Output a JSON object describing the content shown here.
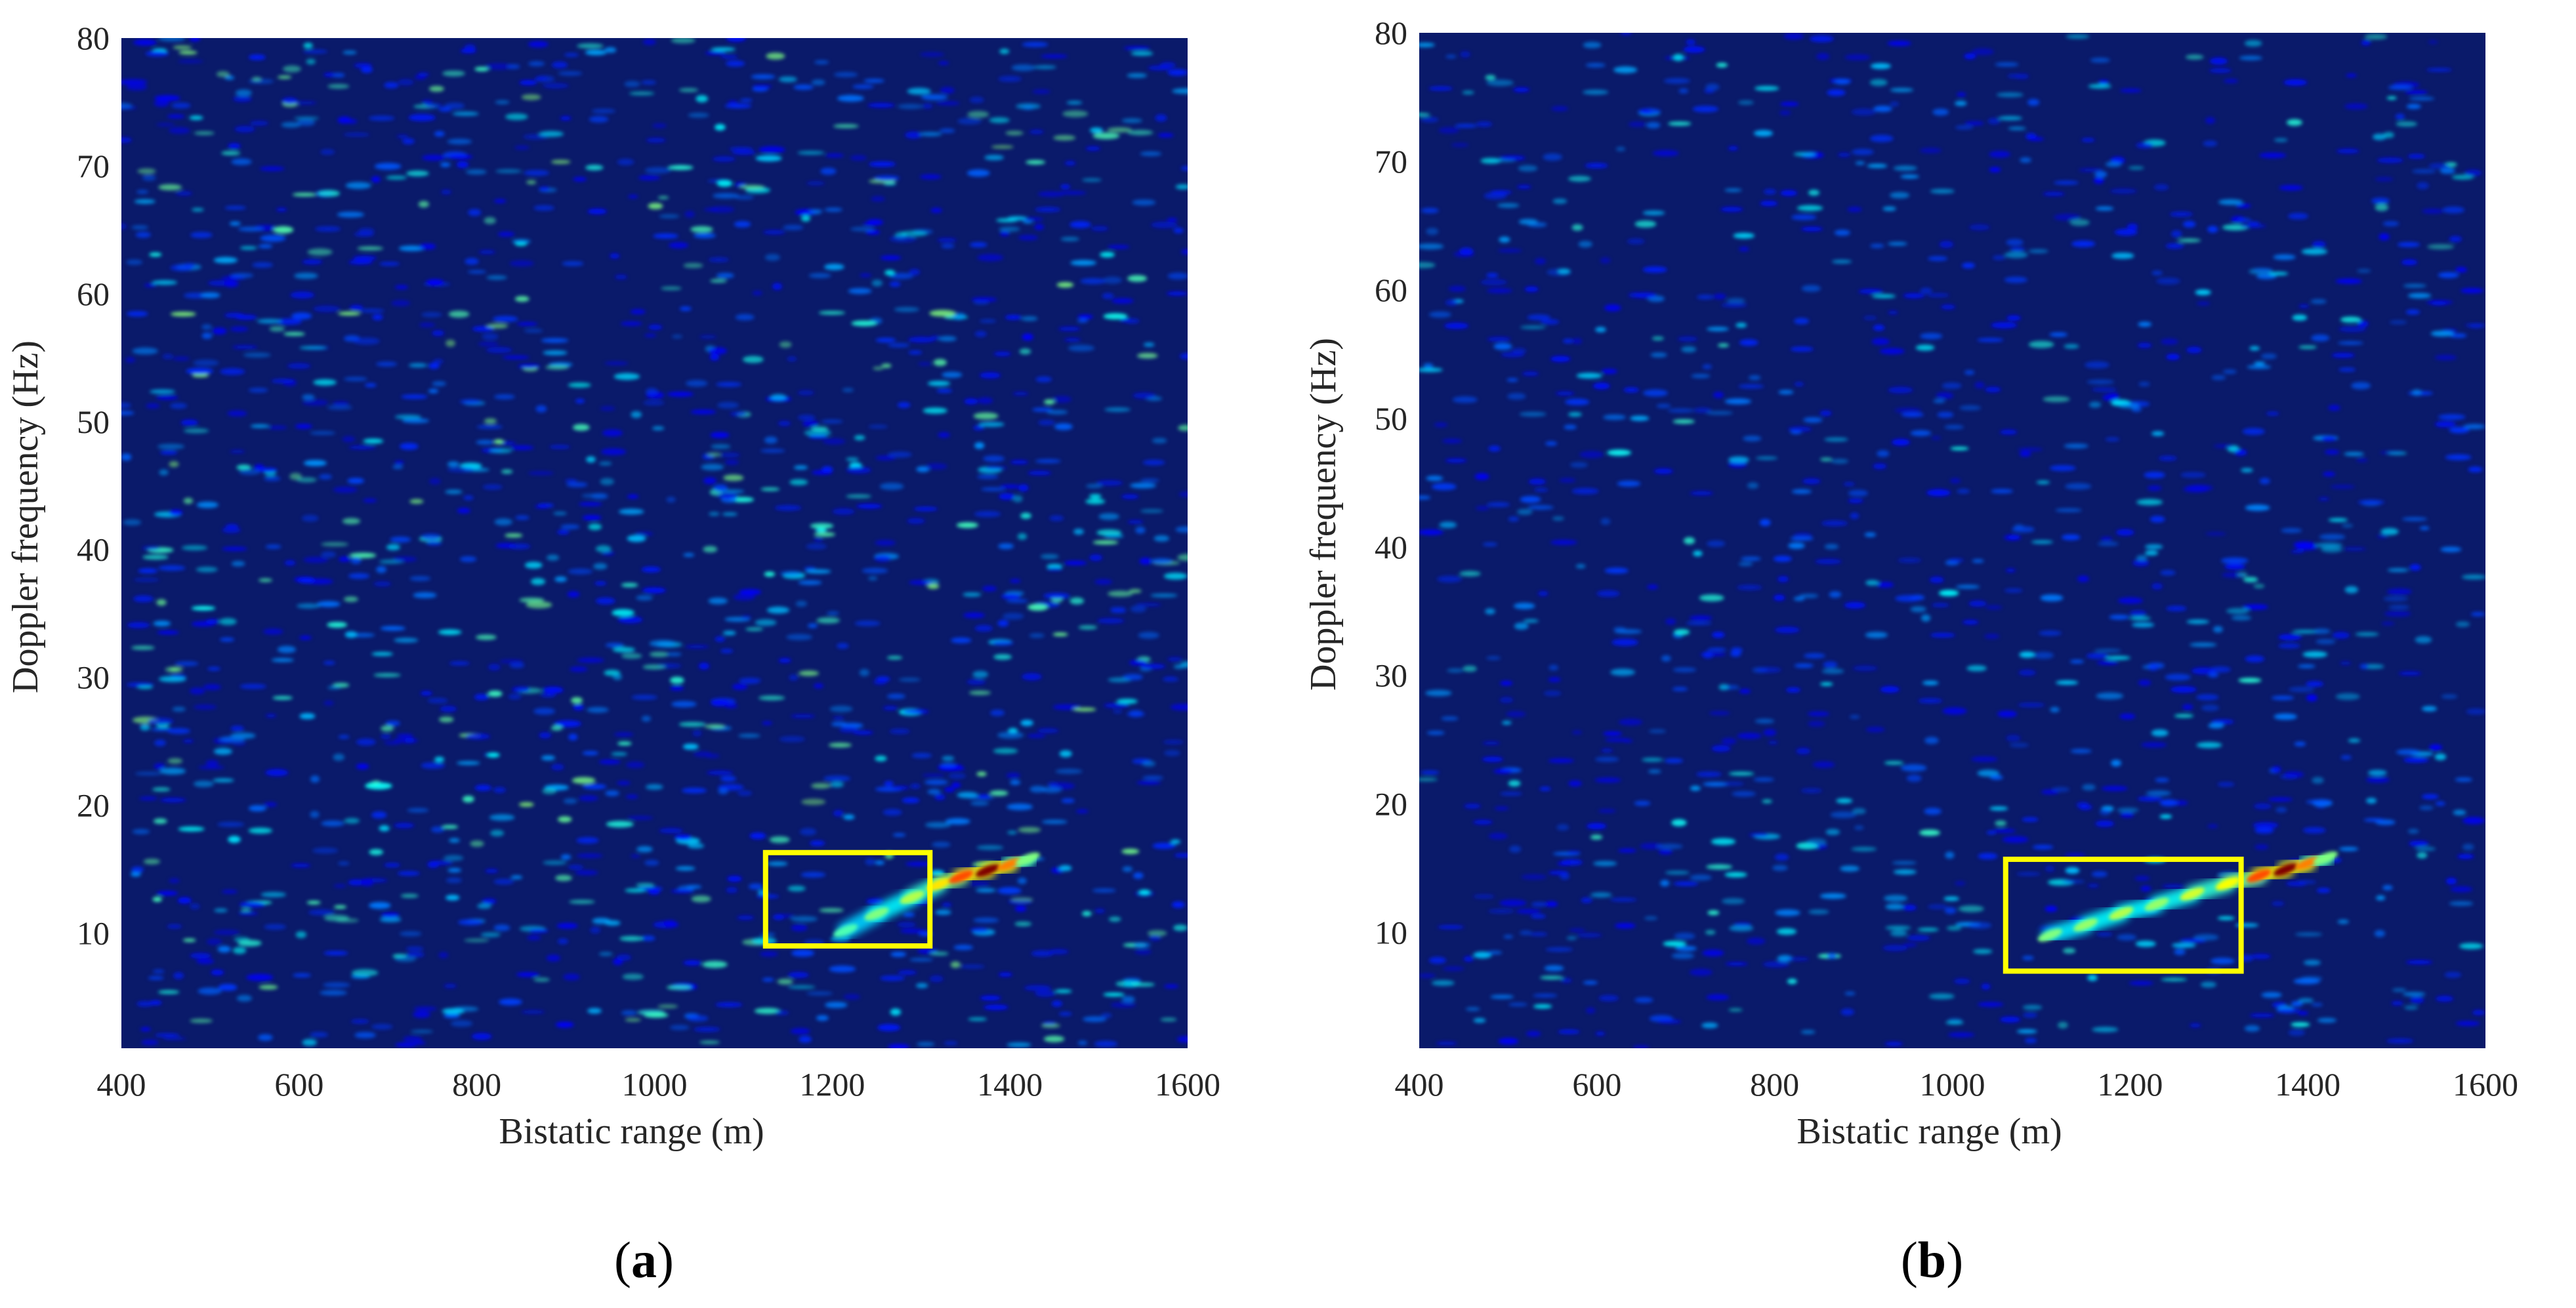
{
  "chart_data": [
    {
      "type": "heatmap",
      "panel_label": "a",
      "caption": "(a)",
      "xlabel": "Bistatic range (m)",
      "ylabel": "Doppler frequency (Hz)",
      "xlim": [
        400,
        1600
      ],
      "ylim": [
        1,
        80
      ],
      "xticks": [
        400,
        600,
        800,
        1000,
        1200,
        1400,
        1600
      ],
      "yticks": [
        10,
        20,
        30,
        40,
        50,
        60,
        70,
        80
      ],
      "colormap": "jet",
      "background_color": "#0a1a6a",
      "grid": false,
      "target_track": [
        {
          "x": 1215,
          "y": 10.2,
          "level": 0.45
        },
        {
          "x": 1250,
          "y": 11.5,
          "level": 0.5
        },
        {
          "x": 1290,
          "y": 12.8,
          "level": 0.55
        },
        {
          "x": 1320,
          "y": 13.8,
          "level": 0.65
        },
        {
          "x": 1345,
          "y": 14.4,
          "level": 0.8
        },
        {
          "x": 1375,
          "y": 14.9,
          "level": 1.0
        },
        {
          "x": 1400,
          "y": 15.4,
          "level": 0.75
        },
        {
          "x": 1420,
          "y": 15.8,
          "level": 0.5
        }
      ],
      "highlight_box": {
        "x0": 1125,
        "x1": 1310,
        "y0": 9,
        "y1": 16.3,
        "color": "#ffff00"
      }
    },
    {
      "type": "heatmap",
      "panel_label": "b",
      "caption": "(b)",
      "xlabel": "Bistatic range (m)",
      "ylabel": "Doppler frequency (Hz)",
      "xlim": [
        400,
        1600
      ],
      "ylim": [
        1,
        80
      ],
      "xticks": [
        400,
        600,
        800,
        1000,
        1200,
        1400,
        1600
      ],
      "yticks": [
        10,
        20,
        30,
        40,
        50,
        60,
        70,
        80
      ],
      "colormap": "jet",
      "background_color": "#0a1a6a",
      "grid": false,
      "target_track": [
        {
          "x": 1110,
          "y": 9.8,
          "level": 0.5
        },
        {
          "x": 1150,
          "y": 10.6,
          "level": 0.52
        },
        {
          "x": 1190,
          "y": 11.5,
          "level": 0.55
        },
        {
          "x": 1230,
          "y": 12.2,
          "level": 0.52
        },
        {
          "x": 1270,
          "y": 13.0,
          "level": 0.58
        },
        {
          "x": 1310,
          "y": 13.8,
          "level": 0.62
        },
        {
          "x": 1345,
          "y": 14.4,
          "level": 0.8
        },
        {
          "x": 1375,
          "y": 14.9,
          "level": 1.0
        },
        {
          "x": 1400,
          "y": 15.4,
          "level": 0.75
        },
        {
          "x": 1420,
          "y": 15.8,
          "level": 0.5
        }
      ],
      "highlight_box": {
        "x0": 1060,
        "x1": 1325,
        "y0": 7,
        "y1": 15.7,
        "color": "#ffff00"
      }
    }
  ]
}
